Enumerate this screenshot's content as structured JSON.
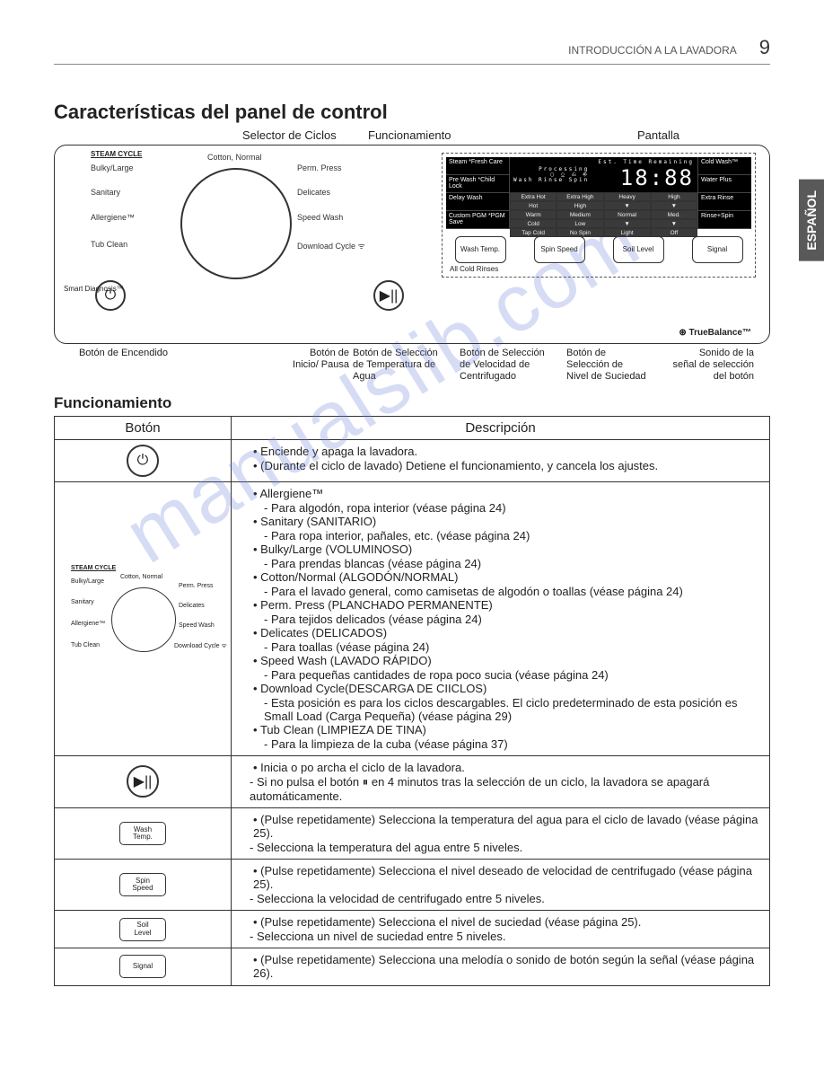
{
  "header": {
    "section": "INTRODUCCIÓN A LA LAVADORA",
    "page_number": "9"
  },
  "side_tab": "ESPAÑOL",
  "title": "Características del panel de control",
  "top_callouts": {
    "selector": "Selector de Ciclos",
    "func": "Funcionamiento",
    "pantalla": "Pantalla"
  },
  "diagram": {
    "steam_cycle": "STEAM CYCLE",
    "dial_labels": {
      "bulky": "Bulky/Large",
      "sanitary": "Sanitary",
      "allergiene": "Allergiene™",
      "tubclean": "Tub Clean",
      "cotton": "Cotton, Normal",
      "perm": "Perm. Press",
      "delicates": "Delicates",
      "speed": "Speed Wash",
      "download": "Download Cycle ᯤ"
    },
    "smart_diag": "Smart Diagnosis™",
    "lcd_left": [
      "Steam\n*Fresh Care",
      "Pre Wash\n*Child Lock",
      "Delay Wash",
      "Custom PGM\n*PGM Save"
    ],
    "lcd_top_icons": "Processing",
    "lcd_time_label": "Est. Time Remaining",
    "lcd_time": "18:88",
    "lcd_icons_row": "▢ ⎐ ⎌ ⎆",
    "lcd_sub": "Wash  Rinse  Spin",
    "lcd_grid": [
      "Extra Hot",
      "Extra High",
      "Heavy",
      "High",
      "Hot",
      "High",
      "▼",
      "▼",
      "Warm",
      "Medium",
      "Normal",
      "Med.",
      "Cold",
      "Low",
      "▼",
      "▼",
      "Tap Cold",
      "No Spin",
      "Light",
      "Off"
    ],
    "lcd_right": [
      "Cold Wash™",
      "Water Plus",
      "Extra Rinse",
      "Rinse+Spin"
    ],
    "panel_buttons": [
      "Wash\nTemp.",
      "Spin\nSpeed",
      "Soil\nLevel",
      "Signal"
    ],
    "allcold": "All Cold Rinses",
    "truebalance": "⊛ TrueBalance™"
  },
  "bottom_callouts": {
    "power": "Botón de Encendido",
    "start": "Botón de\nInicio/ Pausa",
    "temp": "Botón de Selección\nde Temperatura de\nAgua",
    "spin": "Botón de Selección\nde Velocidad de\nCentrifugado",
    "soil": "Botón de\nSelección de\nNivel de Suciedad",
    "signal": "Sonido de la\nseñal de selección\ndel botón"
  },
  "section2": "Funcionamiento",
  "table": {
    "col_button": "Botón",
    "col_desc": "Descripción",
    "rows": [
      {
        "icon": "power",
        "desc_items": [
          {
            "b": "Enciende y apaga la lavadora."
          },
          {
            "b": "(Durante el ciclo de lavado) Detiene el funcionamiento, y cancela los ajustes."
          }
        ]
      },
      {
        "icon": "dial",
        "desc_items": [
          {
            "b": "Allergiene™",
            "s": "- Para algodón, ropa interior (véase página 24)"
          },
          {
            "b": "Sanitary (SANITARIO)",
            "s": "- Para ropa interior, pañales, etc. (véase página 24)"
          },
          {
            "b": "Bulky/Large (VOLUMINOSO)",
            "s": "- Para prendas blancas (véase página 24)"
          },
          {
            "b": "Cotton/Normal (ALGODÓN/NORMAL)",
            "s": "- Para el lavado general, como camisetas de algodón o toallas (véase página 24)"
          },
          {
            "b": "Perm. Press (PLANCHADO PERMANENTE)",
            "s": "- Para tejidos delicados (véase página 24)"
          },
          {
            "b": "Delicates (DELICADOS)",
            "s": "- Para toallas (véase página 24)"
          },
          {
            "b": "Speed Wash (LAVADO RÁPIDO)",
            "s": "- Para pequeñas cantidades de ropa poco sucia (véase página 24)"
          },
          {
            "b": "Download Cycle(DESCARGA DE CIICLOS)",
            "s": "- Esta posición es para los ciclos descargables. El ciclo predeterminado de esta posición es Small Load (Carga Pequeña) (véase página 29)"
          },
          {
            "b": "Tub Clean (LIMPIEZA DE TINA)",
            "s": "-  Para la limpieza de la cuba (véase página 37)"
          }
        ]
      },
      {
        "icon": "play",
        "desc_items": [
          {
            "b": "Inicia o po archa el ciclo de la lavadora."
          },
          {
            "plain": "- Si no pulsa el botón ⏸ en 4 minutos tras la selección de un ciclo, la lavadora se apagará automáticamente."
          }
        ]
      },
      {
        "icon": "wash_temp",
        "desc_items": [
          {
            "b": "(Pulse repetidamente) Selecciona la temperatura del agua para el ciclo de lavado (véase página 25)."
          },
          {
            "plain": "- Selecciona la temperatura del agua entre 5 niveles."
          }
        ]
      },
      {
        "icon": "spin_speed",
        "desc_items": [
          {
            "b": "(Pulse repetidamente) Selecciona el nivel deseado de velocidad de centrifugado (véase página 25)."
          },
          {
            "plain": "- Selecciona la velocidad de centrifugado entre 5 niveles."
          }
        ]
      },
      {
        "icon": "soil_level",
        "desc_items": [
          {
            "b": "(Pulse repetidamente) Selecciona el nivel de suciedad (véase página 25)."
          },
          {
            "plain": "- Selecciona un nivel de suciedad entre 5 niveles."
          }
        ]
      },
      {
        "icon": "signal_btn",
        "desc_items": [
          {
            "b": "(Pulse repetidamente) Selecciona una melodía o sonido de botón según la señal (véase página 26)."
          }
        ]
      }
    ]
  },
  "watermark": "manualslib.com",
  "button_labels": {
    "wash_temp": "Wash\nTemp.",
    "spin_speed": "Spin\nSpeed",
    "soil_level": "Soil\nLevel",
    "signal_btn": "Signal"
  }
}
